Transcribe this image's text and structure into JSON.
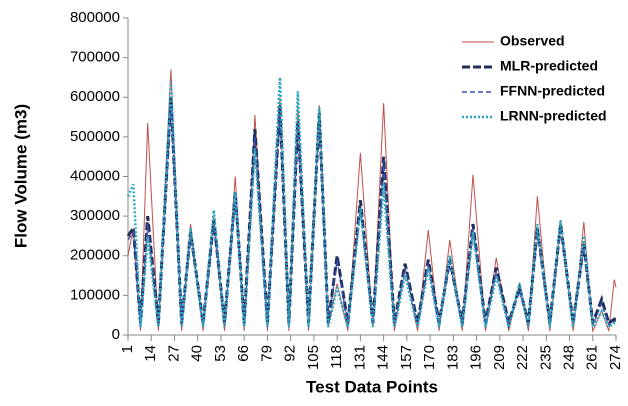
{
  "chart_data": {
    "type": "line",
    "x_label": "Test Data Points",
    "y_label": "Flow Volume (m3)",
    "x": [
      1,
      4,
      8,
      12,
      18,
      25,
      31,
      36,
      43,
      49,
      55,
      61,
      66,
      72,
      79,
      86,
      91,
      96,
      102,
      108,
      113,
      118,
      124,
      131,
      138,
      144,
      150,
      156,
      163,
      169,
      175,
      181,
      188,
      194,
      201,
      207,
      214,
      220,
      225,
      230,
      237,
      243,
      250,
      256,
      261,
      266,
      270,
      273,
      274
    ],
    "xlim": [
      1,
      274
    ],
    "xticks": [
      1,
      14,
      27,
      40,
      53,
      66,
      79,
      92,
      105,
      118,
      131,
      144,
      157,
      170,
      183,
      196,
      209,
      222,
      235,
      248,
      261,
      274
    ],
    "ylim": [
      0,
      800000
    ],
    "yticks": [
      0,
      100000,
      200000,
      300000,
      400000,
      500000,
      600000,
      700000,
      800000
    ],
    "grid": false,
    "legend": "top-right",
    "series": [
      {
        "name": "Observed",
        "color": "#c0504d",
        "style": "solid",
        "values": [
          200000,
          270000,
          10000,
          535000,
          10000,
          670000,
          10000,
          280000,
          10000,
          300000,
          10000,
          400000,
          10000,
          555000,
          10000,
          600000,
          10000,
          580000,
          10000,
          580000,
          20000,
          130000,
          10000,
          460000,
          20000,
          585000,
          10000,
          170000,
          10000,
          265000,
          10000,
          240000,
          10000,
          405000,
          10000,
          195000,
          10000,
          130000,
          10000,
          350000,
          10000,
          290000,
          10000,
          285000,
          10000,
          60000,
          10000,
          140000,
          120000
        ]
      },
      {
        "name": "MLR-predicted",
        "color": "#1f2d5a",
        "style": "longdash",
        "values": [
          250000,
          270000,
          30000,
          300000,
          30000,
          600000,
          30000,
          260000,
          30000,
          290000,
          30000,
          360000,
          30000,
          520000,
          30000,
          580000,
          30000,
          540000,
          30000,
          560000,
          30000,
          200000,
          30000,
          340000,
          30000,
          450000,
          30000,
          180000,
          30000,
          190000,
          30000,
          190000,
          30000,
          280000,
          30000,
          170000,
          30000,
          120000,
          30000,
          270000,
          30000,
          280000,
          30000,
          230000,
          30000,
          90000,
          30000,
          40000,
          40000
        ]
      },
      {
        "name": "FFNN-predicted",
        "color": "#3a4fb0",
        "style": "dash",
        "values": [
          240000,
          260000,
          25000,
          280000,
          25000,
          580000,
          25000,
          250000,
          25000,
          280000,
          25000,
          350000,
          25000,
          500000,
          25000,
          560000,
          25000,
          530000,
          25000,
          550000,
          25000,
          190000,
          25000,
          320000,
          25000,
          440000,
          25000,
          170000,
          25000,
          180000,
          25000,
          185000,
          25000,
          270000,
          25000,
          160000,
          25000,
          110000,
          25000,
          260000,
          25000,
          270000,
          25000,
          220000,
          25000,
          80000,
          25000,
          35000,
          35000
        ]
      },
      {
        "name": "LRNN-predicted",
        "color": "#2aa8c0",
        "style": "dot",
        "values": [
          350000,
          380000,
          20000,
          250000,
          20000,
          640000,
          20000,
          270000,
          20000,
          315000,
          20000,
          360000,
          20000,
          470000,
          20000,
          650000,
          20000,
          615000,
          20000,
          575000,
          20000,
          120000,
          20000,
          320000,
          20000,
          380000,
          20000,
          150000,
          20000,
          170000,
          20000,
          200000,
          20000,
          260000,
          20000,
          150000,
          20000,
          130000,
          20000,
          280000,
          20000,
          290000,
          20000,
          250000,
          20000,
          60000,
          20000,
          30000,
          30000
        ]
      }
    ]
  }
}
